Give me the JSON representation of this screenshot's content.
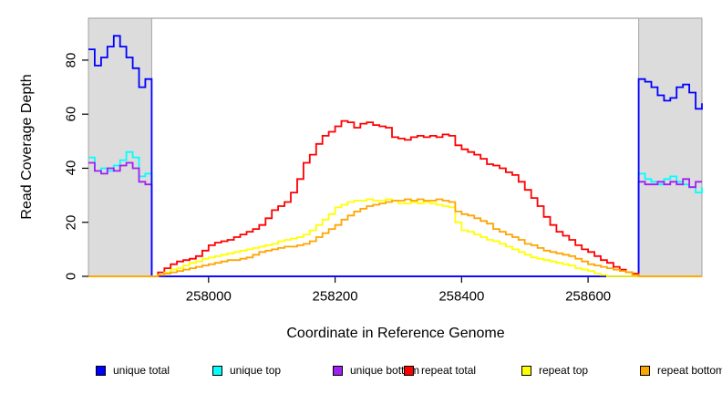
{
  "chart_data": {
    "type": "line",
    "line_style": "step-after",
    "title": "",
    "xlabel": "Coordinate in Reference Genome",
    "ylabel": "Read Coverage Depth",
    "xlim": [
      257810,
      258780
    ],
    "ylim": [
      0,
      95.5
    ],
    "x_ticks": [
      258000,
      258200,
      258400,
      258600
    ],
    "x_tick_labels": [
      "258000",
      "258200",
      "258400",
      "258600"
    ],
    "y_ticks": [
      0,
      20,
      40,
      60,
      80
    ],
    "y_tick_labels": [
      "0",
      "20",
      "40",
      "60",
      "80"
    ],
    "grid": false,
    "legend_position": "bottom-horizontal",
    "x_start": 257810,
    "x_step": 10,
    "shaded_regions": [
      {
        "from": 257810,
        "to": 257910
      },
      {
        "from": 258680,
        "to": 258780
      }
    ],
    "shade_fill": "#dcdcdc",
    "shade_border": "#a3a3a3",
    "series": [
      {
        "name": "unique total",
        "color": "#0000ff",
        "values": [
          84,
          78,
          81,
          85,
          89,
          85,
          81,
          77,
          70,
          73,
          0,
          0,
          0,
          0,
          0,
          0,
          0,
          0,
          0,
          0,
          0,
          0,
          0,
          0,
          0,
          0,
          0,
          0,
          0,
          0,
          0,
          0,
          0,
          0,
          0,
          0,
          0,
          0,
          0,
          0,
          0,
          0,
          0,
          0,
          0,
          0,
          0,
          0,
          0,
          0,
          0,
          0,
          0,
          0,
          0,
          0,
          0,
          0,
          0,
          0,
          0,
          0,
          0,
          0,
          0,
          0,
          0,
          0,
          0,
          0,
          0,
          0,
          0,
          0,
          0,
          0,
          0,
          0,
          0,
          0,
          0,
          0,
          0,
          0,
          0,
          0,
          0,
          73,
          72,
          70,
          67,
          65,
          66,
          70,
          71,
          68,
          62,
          64
        ]
      },
      {
        "name": "unique top",
        "color": "#00ffff",
        "values": [
          44,
          39,
          40,
          39,
          41,
          43,
          46,
          44,
          37,
          38,
          0,
          0,
          0,
          0,
          0,
          0,
          0,
          0,
          0,
          0,
          0,
          0,
          0,
          0,
          0,
          0,
          0,
          0,
          0,
          0,
          0,
          0,
          0,
          0,
          0,
          0,
          0,
          0,
          0,
          0,
          0,
          0,
          0,
          0,
          0,
          0,
          0,
          0,
          0,
          0,
          0,
          0,
          0,
          0,
          0,
          0,
          0,
          0,
          0,
          0,
          0,
          0,
          0,
          0,
          0,
          0,
          0,
          0,
          0,
          0,
          0,
          0,
          0,
          0,
          0,
          0,
          0,
          0,
          0,
          0,
          0,
          0,
          0,
          0,
          0,
          0,
          0,
          38,
          36,
          35,
          34,
          36,
          37,
          35,
          34,
          33,
          31,
          33
        ]
      },
      {
        "name": "unique bottom",
        "color": "#a020f0",
        "values": [
          42,
          39,
          38,
          40,
          39,
          41,
          42,
          40,
          35,
          34,
          0,
          0,
          0,
          0,
          0,
          0,
          0,
          0,
          0,
          0,
          0,
          0,
          0,
          0,
          0,
          0,
          0,
          0,
          0,
          0,
          0,
          0,
          0,
          0,
          0,
          0,
          0,
          0,
          0,
          0,
          0,
          0,
          0,
          0,
          0,
          0,
          0,
          0,
          0,
          0,
          0,
          0,
          0,
          0,
          0,
          0,
          0,
          0,
          0,
          0,
          0,
          0,
          0,
          0,
          0,
          0,
          0,
          0,
          0,
          0,
          0,
          0,
          0,
          0,
          0,
          0,
          0,
          0,
          0,
          0,
          0,
          0,
          0,
          0,
          0,
          0,
          0,
          35,
          34,
          34,
          35,
          34,
          35,
          34,
          36,
          33,
          35,
          35
        ]
      },
      {
        "name": "repeat total",
        "color": "#ff0000",
        "values": [
          0,
          0,
          0,
          0,
          0,
          0,
          0,
          0,
          0,
          0,
          0,
          1.5,
          3,
          4.5,
          5.5,
          6,
          6.5,
          7.5,
          9.5,
          11.5,
          12.5,
          13,
          13.5,
          14.5,
          15.5,
          16.5,
          17.5,
          19,
          21.5,
          24.5,
          26,
          27.5,
          31,
          36,
          42,
          45,
          49,
          52,
          53.5,
          55.5,
          57.5,
          57,
          55,
          56.5,
          57,
          56,
          55.5,
          55,
          51.5,
          51,
          50.5,
          51.5,
          52,
          51.5,
          52,
          51.5,
          52.5,
          52,
          48.5,
          47,
          46,
          45,
          43.5,
          41.5,
          41,
          40,
          38.5,
          37.5,
          35,
          32,
          29,
          26,
          22,
          19,
          16.5,
          15,
          13.5,
          11.5,
          10,
          9,
          7.5,
          6,
          5,
          3.5,
          2.5,
          1.5,
          1,
          0,
          0,
          0,
          0,
          0,
          0,
          0,
          0,
          0,
          0,
          0
        ]
      },
      {
        "name": "repeat top",
        "color": "#ffff00",
        "values": [
          0,
          0,
          0,
          0,
          0,
          0,
          0,
          0,
          0,
          0,
          0,
          0.5,
          1.5,
          2.5,
          3,
          4,
          5,
          5.5,
          6.5,
          7,
          7.5,
          8,
          8.5,
          9,
          9.5,
          10,
          10.5,
          11,
          11.5,
          12,
          13,
          13.5,
          14,
          14.5,
          15.5,
          17,
          19,
          21,
          23,
          25.5,
          26.5,
          27.5,
          28,
          28,
          28.5,
          28,
          28,
          28.5,
          28,
          27,
          27,
          27.5,
          27,
          27.5,
          27,
          26.5,
          26,
          25.5,
          20,
          17,
          16.5,
          15.5,
          14.5,
          13.5,
          13,
          12,
          11,
          10,
          9,
          8,
          7,
          6.5,
          6,
          5.5,
          5,
          4.5,
          4,
          3,
          2.5,
          2,
          1,
          0.5,
          0,
          0,
          0,
          0,
          0,
          0,
          0,
          0,
          0,
          0,
          0,
          0,
          0,
          0,
          0,
          0
        ]
      },
      {
        "name": "repeat bottom",
        "color": "#ffa500",
        "values": [
          0,
          0,
          0,
          0,
          0,
          0,
          0,
          0,
          0,
          0,
          0,
          0.5,
          1,
          1.5,
          2,
          2.5,
          3,
          3.5,
          4,
          4.5,
          5,
          5.5,
          6,
          6,
          6.5,
          7,
          8,
          9,
          9.5,
          10,
          10.5,
          11,
          11,
          11.5,
          12,
          13,
          14.5,
          16,
          17.5,
          19,
          21,
          22.5,
          24,
          25,
          26,
          26.5,
          27,
          27.5,
          28,
          28,
          28.5,
          28,
          28.5,
          28,
          28,
          28.5,
          28,
          27.5,
          24,
          23,
          22.5,
          21.5,
          20.5,
          19.5,
          17.5,
          16.5,
          15.5,
          14.5,
          13.5,
          12,
          11.5,
          10.5,
          9.5,
          9,
          8.5,
          8,
          7.5,
          6.5,
          5.5,
          4.5,
          4,
          3.5,
          3,
          2.5,
          2,
          1.5,
          0.5,
          0,
          0,
          0,
          0,
          0,
          0,
          0,
          0,
          0,
          0,
          0
        ]
      }
    ]
  },
  "axes": {
    "x_label": "Coordinate in Reference Genome",
    "y_label": "Read Coverage Depth"
  },
  "legend": {
    "items": [
      {
        "label": "unique total",
        "color": "#0000ff"
      },
      {
        "label": "unique top",
        "color": "#00ffff"
      },
      {
        "label": "unique bottom",
        "color": "#a020f0"
      },
      {
        "label": "repeat total",
        "color": "#ff0000"
      },
      {
        "label": "repeat top",
        "color": "#ffff00"
      },
      {
        "label": "repeat bottom",
        "color": "#ffa500"
      }
    ]
  }
}
